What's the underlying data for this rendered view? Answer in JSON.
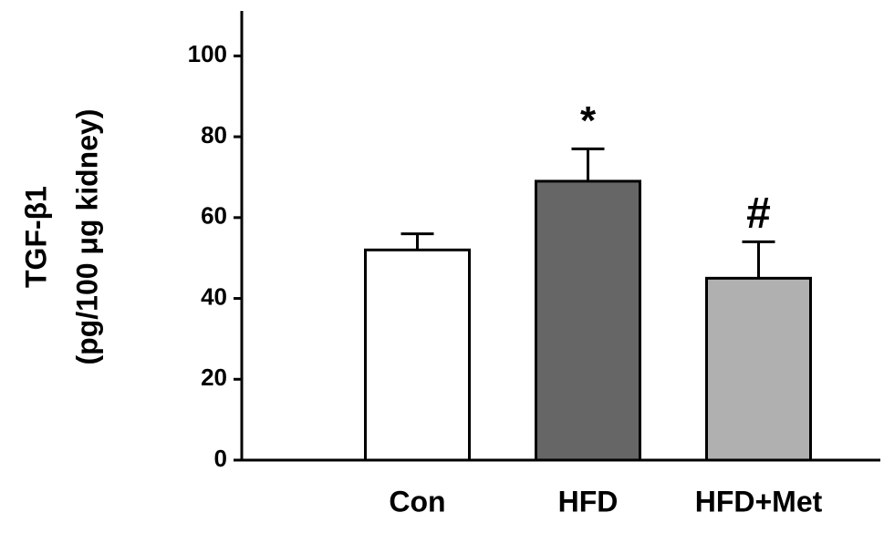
{
  "chart_data": {
    "type": "bar",
    "ylabel": [
      "TGF-β1",
      "(pg/100 μg kidney)"
    ],
    "categories": [
      "Con",
      "HFD",
      "HFD+Met"
    ],
    "values": [
      52,
      69,
      45
    ],
    "errors": [
      4,
      8,
      9
    ],
    "colors": [
      "#ffffff",
      "#666666",
      "#b0b0b0"
    ],
    "ylim": [
      0,
      110
    ],
    "yticks": [
      0,
      20,
      40,
      60,
      80,
      100
    ],
    "annotations": [
      {
        "text": "*",
        "category": "HFD"
      },
      {
        "text": "#",
        "category": "HFD+Met"
      }
    ]
  }
}
